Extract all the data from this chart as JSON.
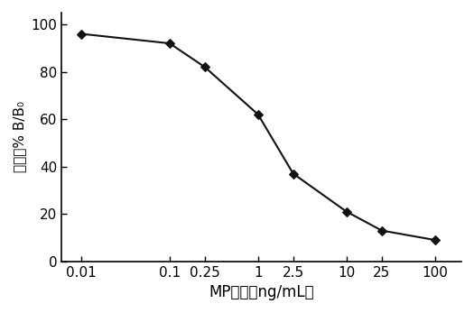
{
  "x_values": [
    0.01,
    0.1,
    0.25,
    1,
    2.5,
    10,
    25,
    100
  ],
  "y_values": [
    96,
    92,
    82,
    62,
    37,
    21,
    13,
    9
  ],
  "x_tick_labels": [
    "0.01",
    "0.1",
    "0.25",
    "1",
    "2.5",
    "10",
    "25",
    "100"
  ],
  "ylabel": "抑制率% B/B₀",
  "xlabel": "MP浓度（ng/mL）",
  "ylim": [
    0,
    105
  ],
  "yticks": [
    0,
    20,
    40,
    60,
    80,
    100
  ],
  "xlim_log": [
    -2.3,
    2.3
  ],
  "line_color": "#111111",
  "marker": "D",
  "marker_size": 5,
  "marker_color": "#111111",
  "line_width": 1.5,
  "background_color": "#ffffff",
  "xlabel_fontsize": 12,
  "ylabel_fontsize": 11,
  "tick_fontsize": 11
}
